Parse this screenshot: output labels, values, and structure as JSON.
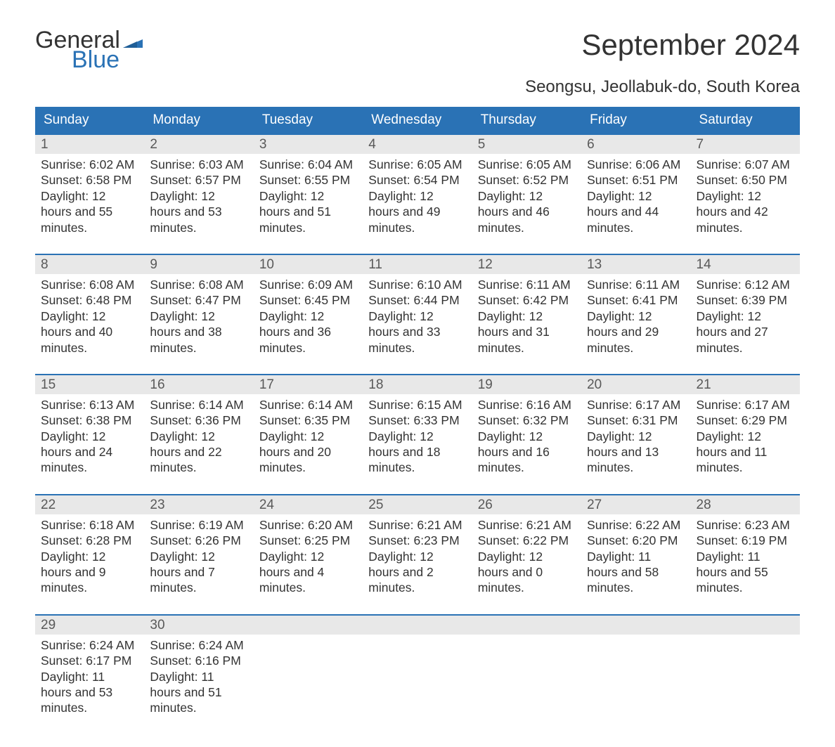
{
  "logo": {
    "word1": "General",
    "word2": "Blue",
    "flag_color": "#2a72b5"
  },
  "title": "September 2024",
  "location": "Seongsu, Jeollabuk-do, South Korea",
  "colors": {
    "header_bg": "#2a72b5",
    "header_text": "#ffffff",
    "daynum_bg": "#e8e8e8",
    "body_text": "#333333",
    "page_bg": "#ffffff"
  },
  "fonts": {
    "title_size_pt": 32,
    "location_size_pt": 18,
    "dayheader_size_pt": 14,
    "body_size_pt": 13
  },
  "day_names": [
    "Sunday",
    "Monday",
    "Tuesday",
    "Wednesday",
    "Thursday",
    "Friday",
    "Saturday"
  ],
  "weeks": [
    [
      {
        "n": 1,
        "sunrise": "6:02 AM",
        "sunset": "6:58 PM",
        "dl_h": 12,
        "dl_m": 55
      },
      {
        "n": 2,
        "sunrise": "6:03 AM",
        "sunset": "6:57 PM",
        "dl_h": 12,
        "dl_m": 53
      },
      {
        "n": 3,
        "sunrise": "6:04 AM",
        "sunset": "6:55 PM",
        "dl_h": 12,
        "dl_m": 51
      },
      {
        "n": 4,
        "sunrise": "6:05 AM",
        "sunset": "6:54 PM",
        "dl_h": 12,
        "dl_m": 49
      },
      {
        "n": 5,
        "sunrise": "6:05 AM",
        "sunset": "6:52 PM",
        "dl_h": 12,
        "dl_m": 46
      },
      {
        "n": 6,
        "sunrise": "6:06 AM",
        "sunset": "6:51 PM",
        "dl_h": 12,
        "dl_m": 44
      },
      {
        "n": 7,
        "sunrise": "6:07 AM",
        "sunset": "6:50 PM",
        "dl_h": 12,
        "dl_m": 42
      }
    ],
    [
      {
        "n": 8,
        "sunrise": "6:08 AM",
        "sunset": "6:48 PM",
        "dl_h": 12,
        "dl_m": 40
      },
      {
        "n": 9,
        "sunrise": "6:08 AM",
        "sunset": "6:47 PM",
        "dl_h": 12,
        "dl_m": 38
      },
      {
        "n": 10,
        "sunrise": "6:09 AM",
        "sunset": "6:45 PM",
        "dl_h": 12,
        "dl_m": 36
      },
      {
        "n": 11,
        "sunrise": "6:10 AM",
        "sunset": "6:44 PM",
        "dl_h": 12,
        "dl_m": 33
      },
      {
        "n": 12,
        "sunrise": "6:11 AM",
        "sunset": "6:42 PM",
        "dl_h": 12,
        "dl_m": 31
      },
      {
        "n": 13,
        "sunrise": "6:11 AM",
        "sunset": "6:41 PM",
        "dl_h": 12,
        "dl_m": 29
      },
      {
        "n": 14,
        "sunrise": "6:12 AM",
        "sunset": "6:39 PM",
        "dl_h": 12,
        "dl_m": 27
      }
    ],
    [
      {
        "n": 15,
        "sunrise": "6:13 AM",
        "sunset": "6:38 PM",
        "dl_h": 12,
        "dl_m": 24
      },
      {
        "n": 16,
        "sunrise": "6:14 AM",
        "sunset": "6:36 PM",
        "dl_h": 12,
        "dl_m": 22
      },
      {
        "n": 17,
        "sunrise": "6:14 AM",
        "sunset": "6:35 PM",
        "dl_h": 12,
        "dl_m": 20
      },
      {
        "n": 18,
        "sunrise": "6:15 AM",
        "sunset": "6:33 PM",
        "dl_h": 12,
        "dl_m": 18
      },
      {
        "n": 19,
        "sunrise": "6:16 AM",
        "sunset": "6:32 PM",
        "dl_h": 12,
        "dl_m": 16
      },
      {
        "n": 20,
        "sunrise": "6:17 AM",
        "sunset": "6:31 PM",
        "dl_h": 12,
        "dl_m": 13
      },
      {
        "n": 21,
        "sunrise": "6:17 AM",
        "sunset": "6:29 PM",
        "dl_h": 12,
        "dl_m": 11
      }
    ],
    [
      {
        "n": 22,
        "sunrise": "6:18 AM",
        "sunset": "6:28 PM",
        "dl_h": 12,
        "dl_m": 9
      },
      {
        "n": 23,
        "sunrise": "6:19 AM",
        "sunset": "6:26 PM",
        "dl_h": 12,
        "dl_m": 7
      },
      {
        "n": 24,
        "sunrise": "6:20 AM",
        "sunset": "6:25 PM",
        "dl_h": 12,
        "dl_m": 4
      },
      {
        "n": 25,
        "sunrise": "6:21 AM",
        "sunset": "6:23 PM",
        "dl_h": 12,
        "dl_m": 2
      },
      {
        "n": 26,
        "sunrise": "6:21 AM",
        "sunset": "6:22 PM",
        "dl_h": 12,
        "dl_m": 0
      },
      {
        "n": 27,
        "sunrise": "6:22 AM",
        "sunset": "6:20 PM",
        "dl_h": 11,
        "dl_m": 58
      },
      {
        "n": 28,
        "sunrise": "6:23 AM",
        "sunset": "6:19 PM",
        "dl_h": 11,
        "dl_m": 55
      }
    ],
    [
      {
        "n": 29,
        "sunrise": "6:24 AM",
        "sunset": "6:17 PM",
        "dl_h": 11,
        "dl_m": 53
      },
      {
        "n": 30,
        "sunrise": "6:24 AM",
        "sunset": "6:16 PM",
        "dl_h": 11,
        "dl_m": 51
      },
      null,
      null,
      null,
      null,
      null
    ]
  ],
  "labels": {
    "sunrise": "Sunrise:",
    "sunset": "Sunset:",
    "daylight": "Daylight:",
    "hours": "hours",
    "and": "and",
    "minutes": "minutes."
  }
}
